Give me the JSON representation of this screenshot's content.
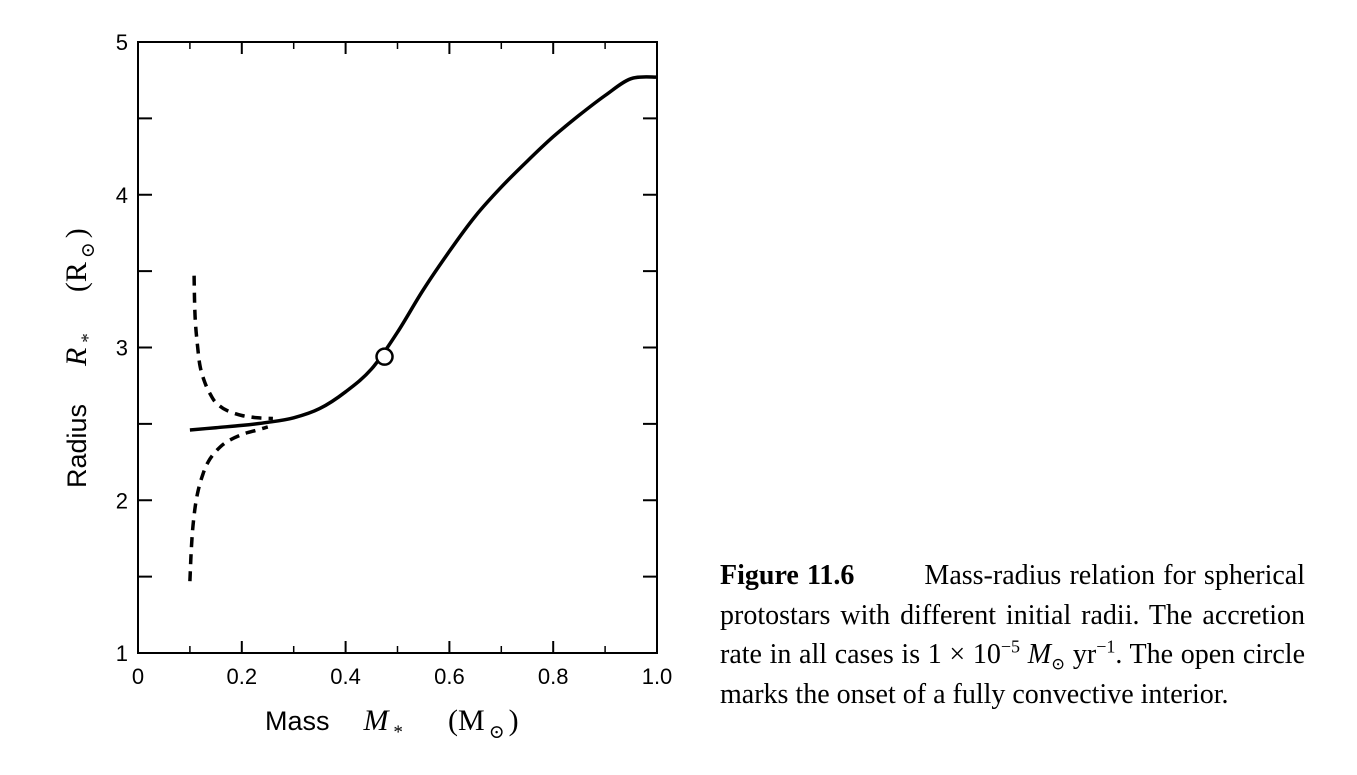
{
  "chart_data": {
    "type": "line",
    "xlabel": "Mass",
    "xlabel_symbol": "M",
    "xlabel_subscript": "*",
    "xlabel_unit": "(M",
    "xlabel_unit_sub": "⊙",
    "xlabel_unit_close": ")",
    "ylabel": "Radius",
    "ylabel_symbol": "R",
    "ylabel_subscript": "*",
    "ylabel_unit": "(R",
    "ylabel_unit_sub": "⊙",
    "ylabel_unit_close": ")",
    "xlim": [
      0,
      1.0
    ],
    "ylim": [
      1,
      5
    ],
    "xticks": [
      0,
      0.2,
      0.4,
      0.6,
      0.8,
      1.0
    ],
    "xtick_labels": [
      "0",
      "0.2",
      "0.4",
      "0.6",
      "0.8",
      "1.0"
    ],
    "yticks": [
      1,
      2,
      3,
      4,
      5
    ],
    "ytick_labels": [
      "1",
      "2",
      "3",
      "4",
      "5"
    ],
    "y_minor_ticks": [
      1.5,
      2.5,
      3.5,
      4.5
    ],
    "x_minor_ticks": [
      0.1,
      0.3,
      0.5,
      0.7,
      0.9
    ],
    "grid": false,
    "series": [
      {
        "style": "solid",
        "x": [
          0.1,
          0.15,
          0.2,
          0.25,
          0.3,
          0.35,
          0.4,
          0.45,
          0.5,
          0.55,
          0.6,
          0.65,
          0.7,
          0.75,
          0.8,
          0.85,
          0.9,
          0.95,
          1.0
        ],
        "y": [
          2.46,
          2.475,
          2.49,
          2.51,
          2.54,
          2.6,
          2.71,
          2.86,
          3.1,
          3.38,
          3.63,
          3.86,
          4.05,
          4.22,
          4.38,
          4.52,
          4.65,
          4.76,
          4.77
        ]
      },
      {
        "style": "dashed",
        "x": [
          0.108,
          0.11,
          0.115,
          0.12,
          0.13,
          0.14,
          0.15,
          0.17,
          0.2,
          0.23,
          0.26
        ],
        "y": [
          3.47,
          3.2,
          3.0,
          2.87,
          2.76,
          2.69,
          2.64,
          2.59,
          2.555,
          2.54,
          2.535
        ]
      },
      {
        "style": "dashed",
        "x": [
          0.1,
          0.103,
          0.108,
          0.115,
          0.125,
          0.135,
          0.15,
          0.17,
          0.2,
          0.23,
          0.25
        ],
        "y": [
          1.47,
          1.7,
          1.9,
          2.05,
          2.17,
          2.25,
          2.32,
          2.38,
          2.43,
          2.46,
          2.48
        ]
      }
    ],
    "markers": [
      {
        "label": "onset of fully convective interior",
        "shape": "open-circle",
        "x": 0.475,
        "y": 2.94
      }
    ]
  },
  "caption": {
    "label": "Figure 11.6",
    "text_1": "Mass-radius relation for spherical protostars with different initial radii.  The accretion rate in all cases is 1 × 10",
    "exp_1": "−5",
    "math_M": "M",
    "sub_sun": "⊙",
    "unit_yr": " yr",
    "exp_2": "−1",
    "text_2": ". The open circle marks the onset of a fully convective interior."
  }
}
